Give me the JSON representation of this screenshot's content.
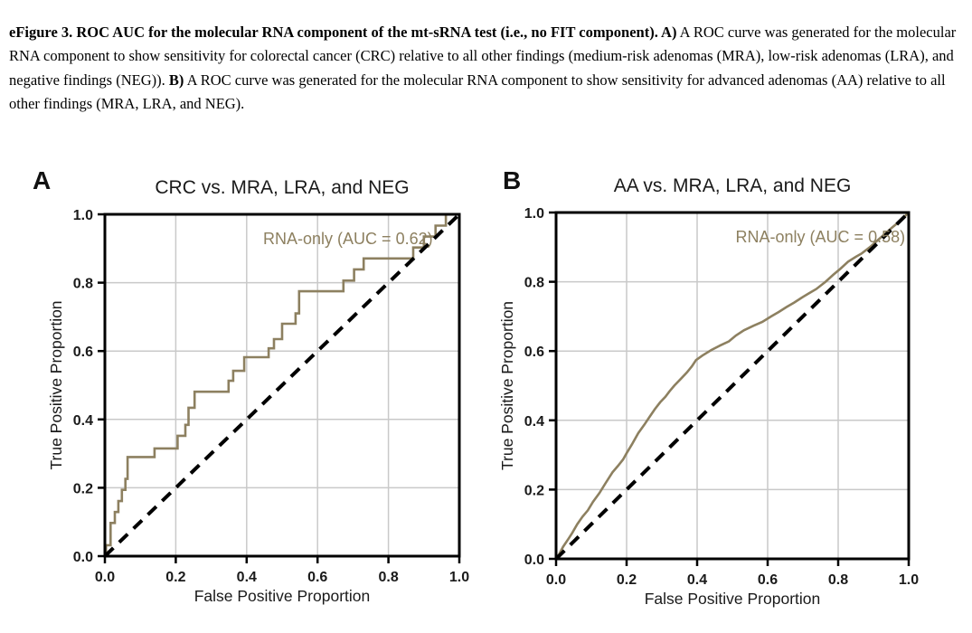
{
  "caption": {
    "segments": [
      {
        "text": "eFigure 3. ROC AUC for the molecular RNA component of the mt-sRNA test (i.e., no FIT component). ",
        "bold": true
      },
      {
        "text": "A)",
        "bold": true
      },
      {
        "text": " A ROC curve was generated for the molecular RNA component to show sensitivity for colorectal cancer (CRC) relative to all other findings (medium-risk adenomas (MRA), low-risk adenomas (LRA), and negative findings (NEG)). ",
        "bold": false
      },
      {
        "text": "B)",
        "bold": true
      },
      {
        "text": " A ROC curve was generated for the molecular RNA component to show sensitivity for advanced adenomas (AA) relative to all other findings (MRA, LRA, and NEG).",
        "bold": false
      }
    ]
  },
  "colors": {
    "roc_curve": "#8d8060",
    "chance_line": "#000000",
    "grid": "#c9c9c9",
    "spine": "#000000",
    "text": "#1a1a1a"
  },
  "chart_data": [
    {
      "id": "A",
      "panel_label": "A",
      "type": "line",
      "title": "CRC vs. MRA, LRA, and NEG",
      "xlabel": "False Positive Proportion",
      "ylabel": "True Positive Proportion",
      "xlim": [
        0.0,
        1.0
      ],
      "ylim": [
        0.0,
        1.0
      ],
      "xticks": [
        0.0,
        0.2,
        0.4,
        0.6,
        0.8,
        1.0
      ],
      "yticks": [
        0.0,
        0.2,
        0.4,
        0.6,
        0.8,
        1.0
      ],
      "grid": true,
      "legend_text": "RNA-only (AUC = 0.62)",
      "legend_position": "upper right inside",
      "legend_anchor": 0.925,
      "auc": 0.62,
      "series": [
        {
          "name": "RNA-only ROC",
          "curve_style": "step-post",
          "color": "#8d8060",
          "points": [
            [
              0,
              0
            ],
            [
              0.003,
              0.032
            ],
            [
              0.016,
              0.097
            ],
            [
              0.028,
              0.129
            ],
            [
              0.038,
              0.161
            ],
            [
              0.048,
              0.194
            ],
            [
              0.058,
              0.226
            ],
            [
              0.064,
              0.29
            ],
            [
              0.14,
              0.315
            ],
            [
              0.205,
              0.352
            ],
            [
              0.227,
              0.384
            ],
            [
              0.236,
              0.434
            ],
            [
              0.253,
              0.481
            ],
            [
              0.349,
              0.513
            ],
            [
              0.362,
              0.542
            ],
            [
              0.393,
              0.582
            ],
            [
              0.462,
              0.608
            ],
            [
              0.477,
              0.635
            ],
            [
              0.5,
              0.68
            ],
            [
              0.538,
              0.71
            ],
            [
              0.548,
              0.775
            ],
            [
              0.673,
              0.806
            ],
            [
              0.703,
              0.839
            ],
            [
              0.73,
              0.871
            ],
            [
              0.87,
              0.903
            ],
            [
              0.9,
              0.935
            ],
            [
              0.933,
              0.967
            ],
            [
              0.962,
              1.0
            ],
            [
              1.0,
              1.0
            ]
          ]
        },
        {
          "name": "Chance diagonal",
          "curve_style": "dashed",
          "color": "#000000",
          "points": [
            [
              0,
              0
            ],
            [
              1,
              1
            ]
          ]
        }
      ]
    },
    {
      "id": "B",
      "panel_label": "B",
      "type": "line",
      "title": "AA vs. MRA, LRA, and NEG",
      "xlabel": "False Positive Proportion",
      "ylabel": "True Positive Proportion",
      "xlim": [
        0.0,
        1.0
      ],
      "ylim": [
        0.0,
        1.0
      ],
      "xticks": [
        0.0,
        0.2,
        0.4,
        0.6,
        0.8,
        1.0
      ],
      "yticks": [
        0.0,
        0.2,
        0.4,
        0.6,
        0.8,
        1.0
      ],
      "grid": true,
      "legend_text": "RNA-only (AUC = 0.58)",
      "legend_position": "upper right inside",
      "legend_anchor": 0.99,
      "auc": 0.58,
      "series": [
        {
          "name": "RNA-only ROC",
          "curve_style": "linear",
          "color": "#8d8060",
          "points": [
            [
              0,
              0
            ],
            [
              0.008,
              0.012
            ],
            [
              0.02,
              0.035
            ],
            [
              0.035,
              0.058
            ],
            [
              0.046,
              0.075
            ],
            [
              0.06,
              0.1
            ],
            [
              0.075,
              0.122
            ],
            [
              0.09,
              0.14
            ],
            [
              0.105,
              0.165
            ],
            [
              0.123,
              0.19
            ],
            [
              0.14,
              0.218
            ],
            [
              0.16,
              0.25
            ],
            [
              0.175,
              0.268
            ],
            [
              0.19,
              0.287
            ],
            [
              0.2,
              0.305
            ],
            [
              0.215,
              0.33
            ],
            [
              0.233,
              0.363
            ],
            [
              0.25,
              0.387
            ],
            [
              0.265,
              0.41
            ],
            [
              0.28,
              0.432
            ],
            [
              0.295,
              0.452
            ],
            [
              0.31,
              0.468
            ],
            [
              0.322,
              0.484
            ],
            [
              0.335,
              0.5
            ],
            [
              0.354,
              0.52
            ],
            [
              0.37,
              0.537
            ],
            [
              0.385,
              0.556
            ],
            [
              0.397,
              0.574
            ],
            [
              0.415,
              0.587
            ],
            [
              0.44,
              0.603
            ],
            [
              0.465,
              0.616
            ],
            [
              0.49,
              0.628
            ],
            [
              0.51,
              0.645
            ],
            [
              0.533,
              0.66
            ],
            [
              0.56,
              0.673
            ],
            [
              0.585,
              0.684
            ],
            [
              0.61,
              0.7
            ],
            [
              0.632,
              0.713
            ],
            [
              0.653,
              0.727
            ],
            [
              0.675,
              0.74
            ],
            [
              0.695,
              0.753
            ],
            [
              0.716,
              0.766
            ],
            [
              0.738,
              0.779
            ],
            [
              0.764,
              0.8
            ],
            [
              0.786,
              0.82
            ],
            [
              0.807,
              0.838
            ],
            [
              0.828,
              0.858
            ],
            [
              0.85,
              0.872
            ],
            [
              0.867,
              0.882
            ],
            [
              0.89,
              0.9
            ],
            [
              0.91,
              0.918
            ],
            [
              0.93,
              0.936
            ],
            [
              0.952,
              0.956
            ],
            [
              0.97,
              0.971
            ],
            [
              0.987,
              0.987
            ],
            [
              1,
              1
            ]
          ]
        },
        {
          "name": "Chance diagonal",
          "curve_style": "dashed",
          "color": "#000000",
          "points": [
            [
              0,
              0
            ],
            [
              1,
              1
            ]
          ]
        }
      ]
    }
  ]
}
